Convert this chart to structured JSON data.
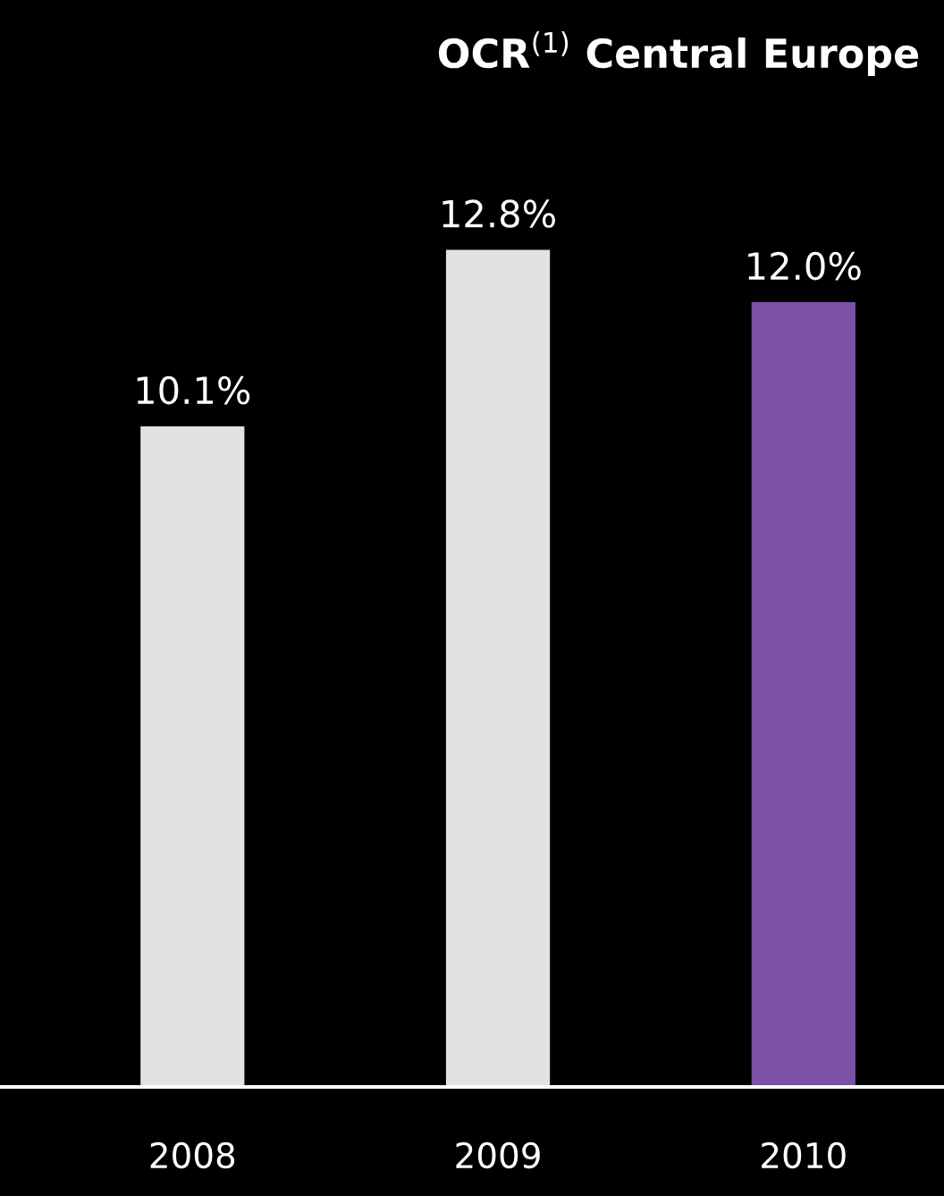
{
  "chart_data": {
    "type": "bar",
    "title": "OCR$^{(1)}$ Central Europe",
    "categories": [
      "2008",
      "2009",
      "2010"
    ],
    "values": [
      10.1,
      12.8,
      12.0
    ],
    "colors": [
      "#e2e2e2",
      "#e2e2e2",
      "#7b52a8"
    ],
    "value_labels": [
      "10.1%",
      "12.8%",
      "12.0%"
    ],
    "grid": false,
    "legend": false
  }
}
